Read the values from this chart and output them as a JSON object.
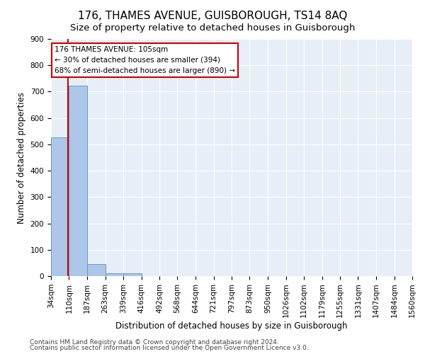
{
  "title": "176, THAMES AVENUE, GUISBOROUGH, TS14 8AQ",
  "subtitle": "Size of property relative to detached houses in Guisborough",
  "xlabel": "Distribution of detached houses by size in Guisborough",
  "ylabel": "Number of detached properties",
  "bin_edges": [
    34,
    110,
    187,
    263,
    339,
    416,
    492,
    568,
    644,
    721,
    797,
    873,
    950,
    1026,
    1102,
    1179,
    1255,
    1331,
    1407,
    1484,
    1560
  ],
  "bar_heights": [
    527,
    724,
    47,
    11,
    10,
    0,
    0,
    0,
    0,
    0,
    0,
    0,
    0,
    0,
    0,
    0,
    0,
    0,
    0,
    0
  ],
  "bar_color": "#aec6e8",
  "bar_edge_color": "#5a9fd4",
  "property_size": 105,
  "property_line_color": "#cc0000",
  "annotation_line1": "176 THAMES AVENUE: 105sqm",
  "annotation_line2": "← 30% of detached houses are smaller (394)",
  "annotation_line3": "68% of semi-detached houses are larger (890) →",
  "annotation_box_color": "#ffffff",
  "annotation_box_edge_color": "#cc0000",
  "ylim": [
    0,
    900
  ],
  "yticks": [
    0,
    100,
    200,
    300,
    400,
    500,
    600,
    700,
    800,
    900
  ],
  "footer_line1": "Contains HM Land Registry data © Crown copyright and database right 2024.",
  "footer_line2": "Contains public sector information licensed under the Open Government Licence v3.0.",
  "background_color": "#e8eef8",
  "grid_color": "#ffffff",
  "title_fontsize": 11,
  "subtitle_fontsize": 9.5,
  "axis_label_fontsize": 8.5,
  "tick_fontsize": 7.5,
  "annotation_fontsize": 7.5,
  "footer_fontsize": 6.5
}
